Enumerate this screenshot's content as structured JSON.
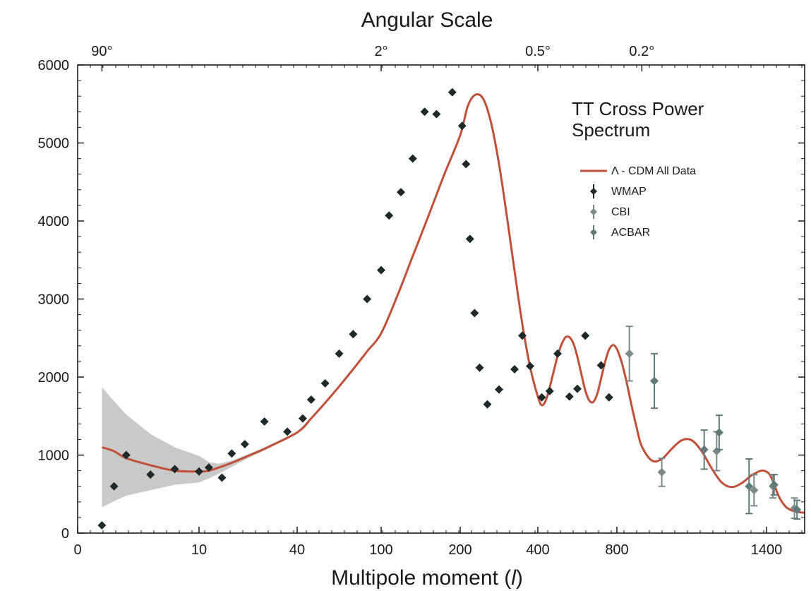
{
  "chart_data": {
    "type": "scatter",
    "title_top": "Angular Scale",
    "top_ticks": [
      {
        "label": "90°",
        "ell": 2
      },
      {
        "label": "2°",
        "ell": 100
      },
      {
        "label": "0.5°",
        "ell": 400
      },
      {
        "label": "0.2°",
        "ell": 900
      }
    ],
    "xlabel_prefix": "Multipole moment (",
    "xlabel_symbol": "l",
    "xlabel_suffix": ")",
    "xticks": [
      {
        "label": "0",
        "ell": 0
      },
      {
        "label": "10",
        "ell": 10
      },
      {
        "label": "40",
        "ell": 40
      },
      {
        "label": "100",
        "ell": 100
      },
      {
        "label": "200",
        "ell": 200
      },
      {
        "label": "400",
        "ell": 400
      },
      {
        "label": "800",
        "ell": 800
      },
      {
        "label": "1400",
        "ell": 1400
      }
    ],
    "yticks": [
      "0",
      "1000",
      "2000",
      "3000",
      "4000",
      "5000",
      "6000"
    ],
    "ylim": [
      0,
      6000
    ],
    "xlim_ell": [
      0,
      1700
    ],
    "legend": {
      "heading_line1": "TT Cross Power",
      "heading_line2": "Spectrum",
      "entries": [
        "Λ - CDM All Data",
        "WMAP",
        "CBI",
        "ACBAR"
      ],
      "placement": "top-right"
    },
    "colors": {
      "model": "#c0503a",
      "band": "#c9c9c9",
      "wmap": "#1e2a2a",
      "cbi": "#7a8a8a",
      "acbar": "#5f7a78",
      "axis": "#1a1a1a"
    },
    "model": {
      "name": "Λ - CDM All Data",
      "ell": [
        2,
        3,
        4,
        6,
        8,
        10,
        13,
        16,
        20,
        25,
        30,
        40,
        50,
        60,
        70,
        80,
        90,
        100,
        120,
        140,
        160,
        180,
        200,
        220,
        240,
        260,
        280,
        300,
        320,
        340,
        360,
        380,
        400,
        420,
        440,
        460,
        480,
        500,
        520,
        540,
        560,
        580,
        600,
        620,
        640,
        660,
        680,
        700,
        720,
        740,
        760,
        780,
        800,
        820,
        840,
        860,
        880,
        900,
        940,
        980,
        1020,
        1060,
        1100,
        1140,
        1180,
        1220,
        1260,
        1300,
        1340,
        1380,
        1420,
        1460,
        1500,
        1550,
        1600,
        1650,
        1700
      ],
      "values": [
        1100,
        1050,
        960,
        870,
        800,
        790,
        800,
        840,
        900,
        990,
        1080,
        1290,
        1470,
        1670,
        1880,
        2100,
        2330,
        2560,
        3030,
        3550,
        4070,
        4600,
        5100,
        5480,
        5620,
        5560,
        5250,
        4730,
        4070,
        3360,
        2680,
        2130,
        1750,
        1640,
        1700,
        1870,
        2070,
        2270,
        2420,
        2510,
        2510,
        2430,
        2260,
        2040,
        1830,
        1700,
        1680,
        1780,
        1980,
        2190,
        2350,
        2410,
        2360,
        2180,
        1920,
        1620,
        1340,
        1110,
        930,
        950,
        1080,
        1190,
        1190,
        1050,
        830,
        650,
        590,
        640,
        740,
        800,
        760,
        620,
        460,
        340,
        290,
        270,
        260
      ],
      "band_ell": [
        2,
        3,
        4,
        6,
        8,
        10,
        13,
        16,
        20,
        25,
        30,
        40,
        50
      ],
      "band_upper": [
        1870,
        1690,
        1520,
        1270,
        1100,
        990,
        910,
        890,
        930,
        1010,
        1100,
        1300,
        1480
      ],
      "band_lower": [
        330,
        410,
        480,
        550,
        620,
        650,
        700,
        760,
        850,
        960,
        1060,
        1280,
        1460
      ]
    },
    "series": [
      {
        "name": "WMAP",
        "ell": [
          2,
          3,
          4,
          6,
          8,
          10,
          13,
          17,
          20,
          24,
          30,
          37,
          44,
          50,
          60,
          70,
          80,
          90,
          100,
          110,
          125,
          140,
          155,
          170,
          190,
          205,
          215,
          225,
          237,
          250,
          270,
          300,
          340,
          360,
          380,
          420,
          460,
          500,
          560,
          600,
          640,
          720,
          760
        ],
        "values": [
          100,
          600,
          1000,
          750,
          820,
          790,
          840,
          710,
          1020,
          1140,
          1430,
          1300,
          1470,
          1710,
          1920,
          2300,
          2550,
          3000,
          3370,
          4070,
          4370,
          4800,
          5400,
          5370,
          5650,
          5220,
          4730,
          3770,
          2820,
          2120,
          1650,
          1840,
          2100,
          2530,
          2140,
          1740,
          1820,
          2300,
          1750,
          1850,
          2530,
          2150,
          1740
        ]
      },
      {
        "name": "CBI",
        "ell": [
          850,
          980,
          1200,
          1350,
          1450,
          1620
        ],
        "values": [
          2300,
          780,
          1050,
          550,
          600,
          320
        ],
        "err": [
          350,
          180,
          250,
          200,
          150,
          130
        ]
      },
      {
        "name": "ACBAR",
        "ell": [
          950,
          1150,
          1210,
          1330,
          1460,
          1640
        ],
        "values": [
          1950,
          1070,
          1290,
          600,
          620,
          300
        ],
        "err": [
          350,
          250,
          220,
          350,
          130,
          120
        ]
      }
    ]
  }
}
